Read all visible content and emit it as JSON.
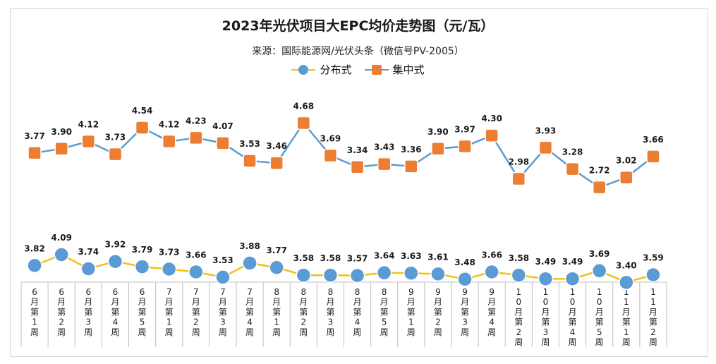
{
  "chart_data": {
    "type": "line",
    "title": "2023年光伏项目大EPC均价走势图（元/瓦）",
    "subtitle": "来源：国际能源网/光伏头条（微信号PV-2005）",
    "categories": [
      "6月第1周",
      "6月第2周",
      "6月第3周",
      "6月第4周",
      "6月第5周",
      "7月第1周",
      "7月第2周",
      "7月第3周",
      "7月第4周",
      "8月第1周",
      "8月第2周",
      "8月第3周",
      "8月第4周",
      "8月第5周",
      "9月第1周",
      "9月第2周",
      "9月第3周",
      "9月第4周",
      "10月第2周",
      "10月第3周",
      "10月第4周",
      "10月第5周",
      "11月第1周",
      "11月第2周"
    ],
    "series": [
      {
        "name": "分布式",
        "color": "#5b9bd5",
        "line_color": "#f2c10e",
        "marker": "circle",
        "values": [
          3.82,
          4.09,
          3.74,
          3.92,
          3.79,
          3.73,
          3.66,
          3.53,
          3.88,
          3.77,
          3.58,
          3.58,
          3.57,
          3.64,
          3.63,
          3.61,
          3.48,
          3.66,
          3.58,
          3.49,
          3.49,
          3.69,
          3.4,
          3.59
        ]
      },
      {
        "name": "集中式",
        "color": "#ed7d31",
        "line_color": "#5b9bd5",
        "marker": "square",
        "values": [
          3.77,
          3.9,
          4.12,
          3.73,
          4.54,
          4.12,
          4.23,
          4.07,
          3.53,
          3.46,
          4.68,
          3.69,
          3.34,
          3.43,
          3.36,
          3.9,
          3.97,
          4.3,
          2.98,
          3.93,
          3.28,
          2.72,
          3.02,
          3.66
        ]
      }
    ],
    "legend_position": "top-center",
    "grid": false
  }
}
